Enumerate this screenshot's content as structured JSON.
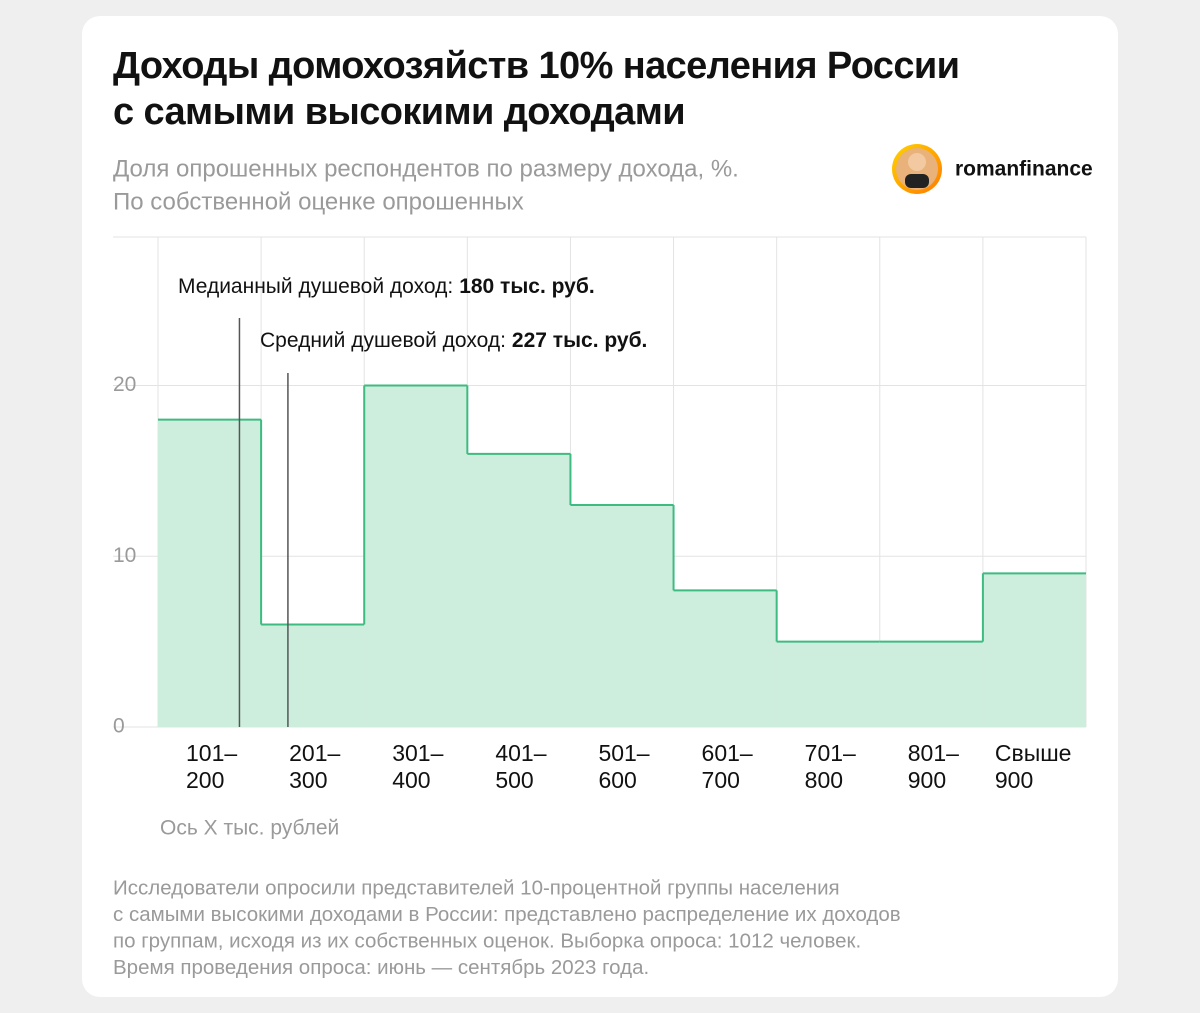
{
  "header": {
    "title": [
      "Доходы домохозяйств 10% населения России",
      "с самыми высокими доходами"
    ],
    "subtitle": [
      "Доля опрошенных респондентов по размеру дохода, %.",
      "По собственной оценке опрошенных"
    ],
    "brand": "romanfinance"
  },
  "chart_data": {
    "type": "step-bar",
    "x_label": "Ось X тыс. рублей",
    "categories": [
      [
        "101–",
        "200"
      ],
      [
        "201–",
        "300"
      ],
      [
        "301–",
        "400"
      ],
      [
        "401–",
        "500"
      ],
      [
        "501–",
        "600"
      ],
      [
        "601–",
        "700"
      ],
      [
        "701–",
        "800"
      ],
      [
        "801–",
        "900"
      ],
      [
        "Свыше",
        "900"
      ]
    ],
    "values": [
      18,
      6,
      20,
      16,
      13,
      8,
      5,
      5,
      9
    ],
    "color": "#cdeedd",
    "line_color": "#3dbb80",
    "ylim": [
      0,
      28.7
    ],
    "yticks": [
      0,
      10,
      20
    ],
    "xlim": [
      101,
      1001
    ],
    "grid": true,
    "annotations": [
      {
        "text": "Медианный душевой доход:",
        "value_label": "180 тыс. руб.",
        "value": 180
      },
      {
        "text": "Средний душевой доход:",
        "value_label": "227 тыс. руб.",
        "value": 227
      }
    ]
  },
  "footnote": [
    "Исследователи опросили представителей 10-процентной группы населения",
    "с самыми высокими доходами в России: представлено распределение их доходов",
    "по группам, исходя из их собственных оценок. Выборка опроса: 1012 человек.",
    "Время проведения опроса: июнь — сентябрь 2023 года."
  ]
}
